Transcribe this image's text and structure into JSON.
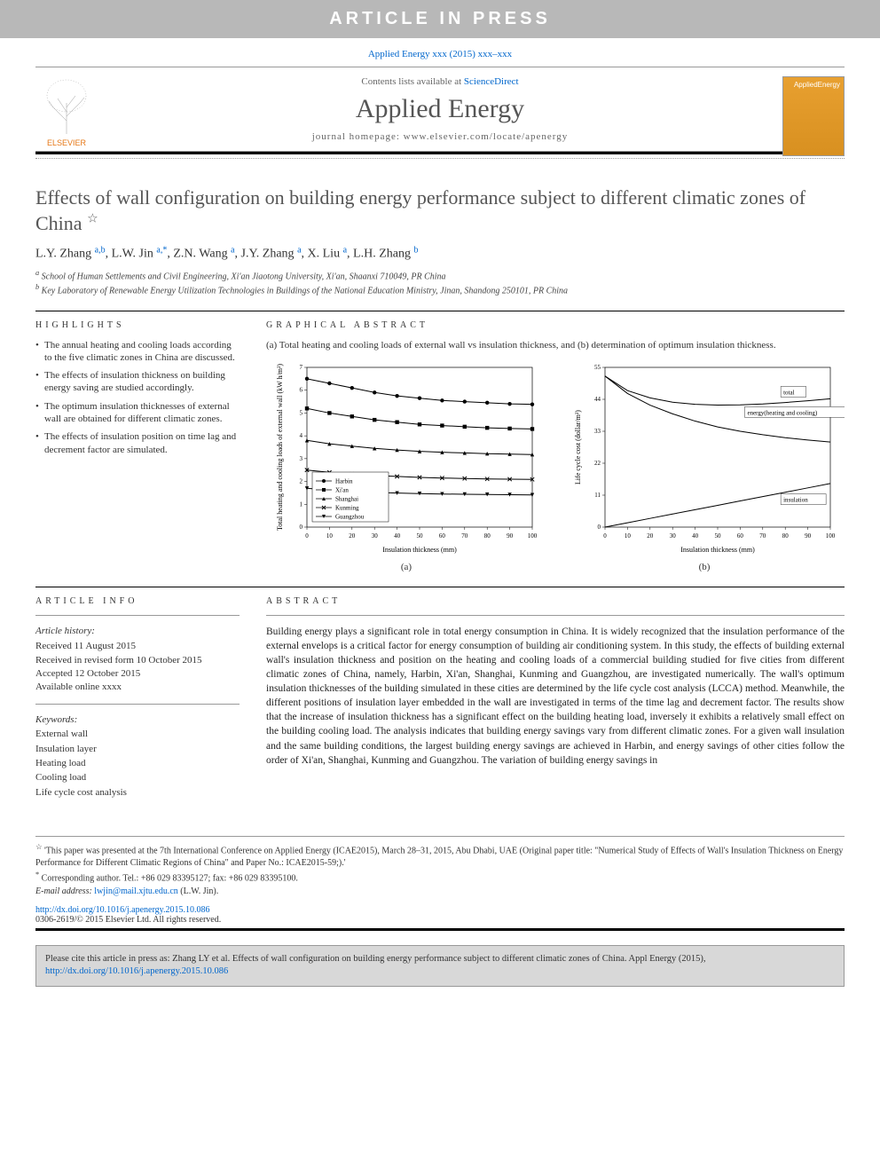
{
  "banner": "ARTICLE IN PRESS",
  "citation": "Applied Energy xxx (2015) xxx–xxx",
  "masthead": {
    "contents_prefix": "Contents lists available at ",
    "contents_link": "ScienceDirect",
    "journal": "Applied Energy",
    "homepage_prefix": "journal homepage: ",
    "homepage_url": "www.elsevier.com/locate/apenergy",
    "elsevier_label": "ELSEVIER",
    "cover_label": "AppliedEnergy"
  },
  "title": "Effects of wall configuration on building energy performance subject to different climatic zones of China",
  "star_note_marker": "☆",
  "authors_html": "L.Y. Zhang <sup>a,b</sup>, L.W. Jin <sup>a,*</sup>, Z.N. Wang <sup>a</sup>, J.Y. Zhang <sup>a</sup>, X. Liu <sup>a</sup>, L.H. Zhang <sup>b</sup>",
  "authors": [
    {
      "name": "L.Y. Zhang",
      "aff": "a,b"
    },
    {
      "name": "L.W. Jin",
      "aff": "a,*"
    },
    {
      "name": "Z.N. Wang",
      "aff": "a"
    },
    {
      "name": "J.Y. Zhang",
      "aff": "a"
    },
    {
      "name": "X. Liu",
      "aff": "a"
    },
    {
      "name": "L.H. Zhang",
      "aff": "b"
    }
  ],
  "affiliations": [
    {
      "marker": "a",
      "text": "School of Human Settlements and Civil Engineering, Xi'an Jiaotong University, Xi'an, Shaanxi 710049, PR China"
    },
    {
      "marker": "b",
      "text": "Key Laboratory of Renewable Energy Utilization Technologies in Buildings of the National Education Ministry, Jinan, Shandong 250101, PR China"
    }
  ],
  "highlights_heading": "HIGHLIGHTS",
  "highlights": [
    "The annual heating and cooling loads according to the five climatic zones in China are discussed.",
    "The effects of insulation thickness on building energy saving are studied accordingly.",
    "The optimum insulation thicknesses of external wall are obtained for different climatic zones.",
    "The effects of insulation position on time lag and decrement factor are simulated."
  ],
  "ga_heading": "GRAPHICAL ABSTRACT",
  "ga_caption": "(a) Total heating and cooling loads of external wall vs insulation thickness, and (b) determination of optimum insulation thickness.",
  "chart_a": {
    "type": "line",
    "xlabel": "Insulation thickness (mm)",
    "ylabel": "Total heating and cooling loads of external wall (kW h/m²)",
    "xlim": [
      0,
      100
    ],
    "ylim": [
      0,
      7
    ],
    "xticks": [
      0,
      10,
      20,
      30,
      40,
      50,
      60,
      70,
      80,
      90,
      100
    ],
    "yticks": [
      0,
      1,
      2,
      3,
      4,
      5,
      6,
      7
    ],
    "grid_color": "#e0e0e0",
    "background_color": "#ffffff",
    "line_color": "#000000",
    "line_width": 1,
    "label_fontsize": 8,
    "tick_fontsize": 7,
    "series": [
      {
        "name": "Harbin",
        "marker": "circle",
        "values": [
          6.5,
          6.3,
          6.1,
          5.9,
          5.75,
          5.65,
          5.55,
          5.5,
          5.45,
          5.4,
          5.38
        ]
      },
      {
        "name": "Xi'an",
        "marker": "square",
        "values": [
          5.2,
          5.0,
          4.85,
          4.7,
          4.6,
          4.5,
          4.45,
          4.4,
          4.35,
          4.32,
          4.3
        ]
      },
      {
        "name": "Shanghai",
        "marker": "triangle-up",
        "values": [
          3.8,
          3.65,
          3.55,
          3.45,
          3.38,
          3.32,
          3.28,
          3.25,
          3.22,
          3.2,
          3.18
        ]
      },
      {
        "name": "Kunming",
        "marker": "x",
        "values": [
          2.5,
          2.4,
          2.32,
          2.26,
          2.22,
          2.18,
          2.15,
          2.13,
          2.11,
          2.1,
          2.09
        ]
      },
      {
        "name": "Guangzhou",
        "marker": "triangle-down",
        "values": [
          1.7,
          1.62,
          1.56,
          1.52,
          1.49,
          1.47,
          1.45,
          1.44,
          1.43,
          1.42,
          1.41
        ]
      }
    ],
    "legend_position": "bottom-left",
    "sublabel": "(a)"
  },
  "chart_b": {
    "type": "line",
    "xlabel": "Insulation thickness (mm)",
    "ylabel": "Life cycle cost (dollar/m²)",
    "xlim": [
      0,
      100
    ],
    "ylim": [
      0,
      55
    ],
    "xticks": [
      0,
      10,
      20,
      30,
      40,
      50,
      60,
      70,
      80,
      90,
      100
    ],
    "yticks": [
      0,
      11,
      22,
      33,
      44,
      55
    ],
    "grid_color": "#e0e0e0",
    "background_color": "#ffffff",
    "line_color": "#000000",
    "line_width": 1,
    "label_fontsize": 8,
    "tick_fontsize": 7,
    "series": [
      {
        "name": "total",
        "values": [
          52,
          47,
          44.5,
          43,
          42.3,
          42,
          42.1,
          42.4,
          42.9,
          43.5,
          44.2
        ]
      },
      {
        "name": "energy(heating and cooling)",
        "values": [
          52,
          46,
          42,
          39,
          36.5,
          34.5,
          33,
          31.8,
          30.8,
          30,
          29.3
        ]
      },
      {
        "name": "insulation",
        "values": [
          0,
          1.5,
          3,
          4.5,
          6,
          7.5,
          9,
          10.5,
          12,
          13.5,
          15
        ]
      }
    ],
    "annotations": [
      "total",
      "energy(heating and cooling)",
      "insulation"
    ],
    "sublabel": "(b)"
  },
  "article_info_heading": "ARTICLE INFO",
  "article_history_heading": "Article history:",
  "article_history": [
    "Received 11 August 2015",
    "Received in revised form 10 October 2015",
    "Accepted 12 October 2015",
    "Available online xxxx"
  ],
  "keywords_heading": "Keywords:",
  "keywords": [
    "External wall",
    "Insulation layer",
    "Heating load",
    "Cooling load",
    "Life cycle cost analysis"
  ],
  "abstract_heading": "ABSTRACT",
  "abstract": "Building energy plays a significant role in total energy consumption in China. It is widely recognized that the insulation performance of the external envelops is a critical factor for energy consumption of building air conditioning system. In this study, the effects of building external wall's insulation thickness and position on the heating and cooling loads of a commercial building studied for five cities from different climatic zones of China, namely, Harbin, Xi'an, Shanghai, Kunming and Guangzhou, are investigated numerically. The wall's optimum insulation thicknesses of the building simulated in these cities are determined by the life cycle cost analysis (LCCA) method. Meanwhile, the different positions of insulation layer embedded in the wall are investigated in terms of the time lag and decrement factor. The results show that the increase of insulation thickness has a significant effect on the building heating load, inversely it exhibits a relatively small effect on the building cooling load. The analysis indicates that building energy savings vary from different climatic zones. For a given wall insulation and the same building conditions, the largest building energy savings are achieved in Harbin, and energy savings of other cities follow the order of Xi'an, Shanghai, Kunming and Guangzhou. The variation of building energy savings in",
  "footnotes": {
    "star": "'This paper was presented at the 7th International Conference on Applied Energy (ICAE2015), March 28–31, 2015, Abu Dhabi, UAE (Original paper title: \"Numerical Study of Effects of Wall's Insulation Thickness on Energy Performance for Different Climatic Regions of China\" and Paper No.: ICAE2015-59;).'",
    "corr_marker": "*",
    "corr": "Corresponding author. Tel.: +86 029 83395127; fax: +86 029 83395100.",
    "email_label": "E-mail address:",
    "email": "lwjin@mail.xjtu.edu.cn",
    "email_name": "(L.W. Jin)."
  },
  "doi": {
    "url": "http://dx.doi.org/10.1016/j.apenergy.2015.10.086",
    "copyright": "0306-2619/© 2015 Elsevier Ltd. All rights reserved."
  },
  "cite_box": {
    "text": "Please cite this article in press as: Zhang LY et al. Effects of wall configuration on building energy performance subject to different climatic zones of China. Appl Energy (2015), ",
    "link": "http://dx.doi.org/10.1016/j.apenergy.2015.10.086"
  }
}
